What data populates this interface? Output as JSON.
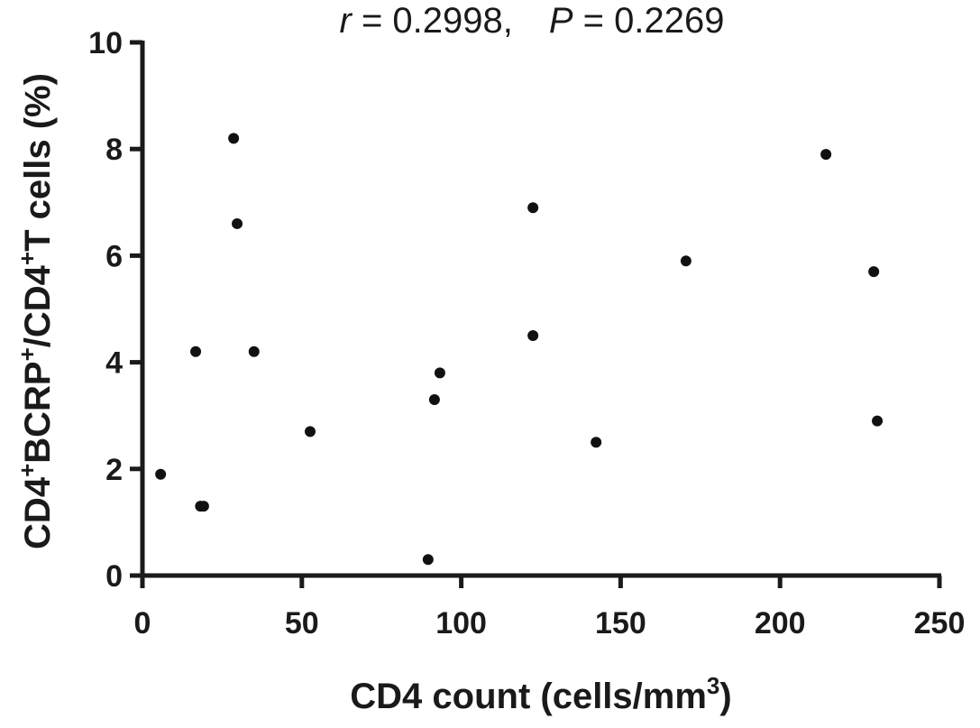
{
  "chart_data": {
    "type": "scatter",
    "title": "",
    "annotation": {
      "r_symbol": "r",
      "r_text": " = 0.2998,",
      "p_symbol": "P",
      "p_text": " = 0.2269"
    },
    "xlabel": {
      "main": "CD4  count (cells/mm",
      "sup": "3",
      "end": ")"
    },
    "ylabel": {
      "parts": [
        {
          "t": "CD4",
          "sup": false
        },
        {
          "t": "+",
          "sup": true
        },
        {
          "t": "BCRP",
          "sup": false
        },
        {
          "t": "+",
          "sup": true
        },
        {
          "t": "/CD4",
          "sup": false
        },
        {
          "t": "+",
          "sup": true
        },
        {
          "t": "T cells (%)",
          "sup": false
        }
      ]
    },
    "xlim": [
      0,
      250
    ],
    "ylim": [
      0,
      10
    ],
    "xticks": [
      "0",
      "50",
      "100",
      "150",
      "200",
      "250"
    ],
    "yticks": [
      "0",
      "2",
      "4",
      "6",
      "8",
      "10"
    ],
    "grid": false,
    "marker_color": "#111111",
    "points": [
      {
        "x": 5.7,
        "y": 1.9
      },
      {
        "x": 16.7,
        "y": 4.2
      },
      {
        "x": 18.2,
        "y": 1.3
      },
      {
        "x": 19.2,
        "y": 1.3
      },
      {
        "x": 28.6,
        "y": 8.2
      },
      {
        "x": 29.7,
        "y": 6.6
      },
      {
        "x": 35.0,
        "y": 4.2
      },
      {
        "x": 52.6,
        "y": 2.7
      },
      {
        "x": 89.6,
        "y": 0.3
      },
      {
        "x": 91.6,
        "y": 3.3
      },
      {
        "x": 93.3,
        "y": 3.8
      },
      {
        "x": 122.5,
        "y": 6.9
      },
      {
        "x": 122.5,
        "y": 4.5
      },
      {
        "x": 142.3,
        "y": 2.5
      },
      {
        "x": 170.5,
        "y": 5.9
      },
      {
        "x": 214.4,
        "y": 7.9
      },
      {
        "x": 229.4,
        "y": 5.7
      },
      {
        "x": 230.5,
        "y": 2.9
      }
    ]
  }
}
